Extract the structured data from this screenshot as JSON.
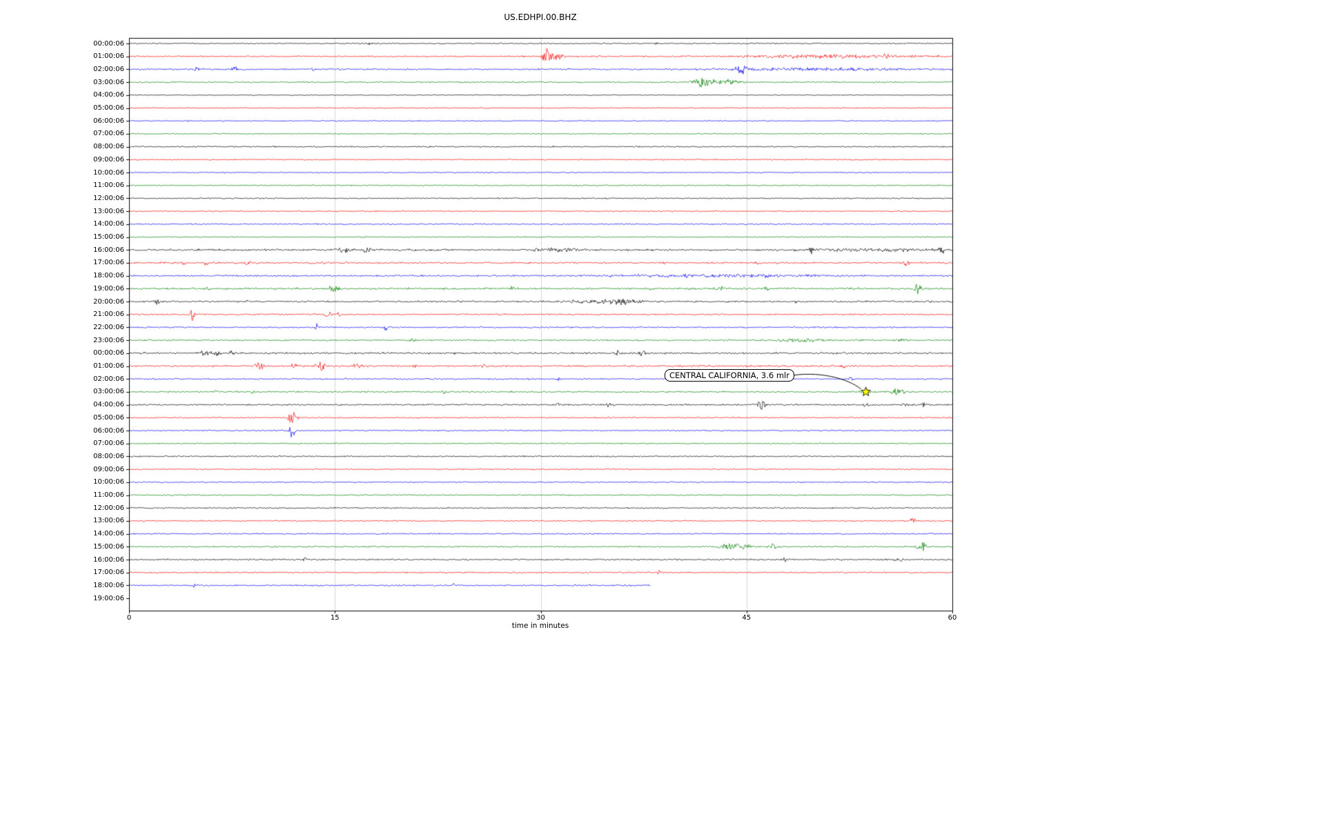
{
  "title": "US.EDHPI.00.BHZ",
  "xlabel": "time in minutes",
  "annotation": {
    "text": "CENTRAL CALIFORNIA, 3.6 mlr",
    "row": 27,
    "minute": 53.7
  },
  "colors": {
    "black": "#000000",
    "red": "#ff0000",
    "blue": "#0000ff",
    "green": "#008000",
    "grid": "#cccccc",
    "frame": "#000000",
    "star_fill": "#ffff00",
    "star_edge": "#000000"
  },
  "chart_data": {
    "type": "line",
    "title": "US.EDHPI.00.BHZ",
    "xlabel": "time in minutes",
    "xlim": [
      0,
      60
    ],
    "x_ticks": [
      0,
      15,
      30,
      45,
      60
    ],
    "grid": "vertical",
    "legend": "none",
    "description": "24h helicorder/dayplot seismogram, one 60-minute trace per row, colors cycle black/red/blue/green",
    "rows": [
      {
        "label": "00:00:06",
        "color": "#000000",
        "amp": 1.4,
        "end_min": 60,
        "events": [
          {
            "m": 17.5,
            "a": 4,
            "w": 0.1
          },
          {
            "m": 38.5,
            "a": 3,
            "w": 0.08
          }
        ]
      },
      {
        "label": "01:00:06",
        "color": "#ff0000",
        "amp": 1.5,
        "end_min": 60,
        "events": [
          {
            "m": 30.4,
            "a": 14,
            "w": 0.25
          },
          {
            "m": 31.2,
            "a": 6,
            "w": 0.3
          },
          {
            "m": 51,
            "a": 2.5,
            "w": 5
          },
          {
            "m": 48.3,
            "a": 4,
            "w": 0.1
          },
          {
            "m": 55.2,
            "a": 4,
            "w": 0.15
          }
        ]
      },
      {
        "label": "02:00:06",
        "color": "#0000ff",
        "amp": 1.6,
        "end_min": 60,
        "events": [
          {
            "m": 5,
            "a": 4,
            "w": 0.15
          },
          {
            "m": 7.7,
            "a": 5,
            "w": 0.12
          },
          {
            "m": 13.4,
            "a": 4,
            "w": 0.1
          },
          {
            "m": 44.6,
            "a": 8,
            "w": 0.3
          },
          {
            "m": 50,
            "a": 2,
            "w": 6
          }
        ]
      },
      {
        "label": "03:00:06",
        "color": "#008000",
        "amp": 1.5,
        "end_min": 60,
        "events": [
          {
            "m": 41.8,
            "a": 8,
            "w": 0.5
          },
          {
            "m": 43.6,
            "a": 5,
            "w": 0.6
          }
        ]
      },
      {
        "label": "04:00:06",
        "color": "#000000",
        "amp": 1.1,
        "end_min": 60,
        "events": []
      },
      {
        "label": "05:00:06",
        "color": "#ff0000",
        "amp": 1.1,
        "end_min": 60,
        "events": []
      },
      {
        "label": "06:00:06",
        "color": "#0000ff",
        "amp": 1.2,
        "end_min": 60,
        "events": []
      },
      {
        "label": "07:00:06",
        "color": "#008000",
        "amp": 1.2,
        "end_min": 60,
        "events": []
      },
      {
        "label": "08:00:06",
        "color": "#000000",
        "amp": 1.4,
        "end_min": 60,
        "events": []
      },
      {
        "label": "09:00:06",
        "color": "#ff0000",
        "amp": 1.2,
        "end_min": 60,
        "events": []
      },
      {
        "label": "10:00:06",
        "color": "#0000ff",
        "amp": 1.2,
        "end_min": 60,
        "events": []
      },
      {
        "label": "11:00:06",
        "color": "#008000",
        "amp": 1.2,
        "end_min": 60,
        "events": []
      },
      {
        "label": "12:00:06",
        "color": "#000000",
        "amp": 1.3,
        "end_min": 60,
        "events": []
      },
      {
        "label": "13:00:06",
        "color": "#ff0000",
        "amp": 1.2,
        "end_min": 60,
        "events": []
      },
      {
        "label": "14:00:06",
        "color": "#0000ff",
        "amp": 1.3,
        "end_min": 60,
        "events": []
      },
      {
        "label": "15:00:06",
        "color": "#008000",
        "amp": 1.2,
        "end_min": 60,
        "events": []
      },
      {
        "label": "16:00:06",
        "color": "#000000",
        "amp": 2.0,
        "end_min": 60,
        "events": [
          {
            "m": 15.6,
            "a": 5,
            "w": 0.5
          },
          {
            "m": 17.3,
            "a": 4,
            "w": 0.3
          },
          {
            "m": 29.6,
            "a": 3,
            "w": 0.1
          },
          {
            "m": 31.5,
            "a": 3,
            "w": 1.2
          },
          {
            "m": 49.7,
            "a": 4,
            "w": 0.15
          },
          {
            "m": 55,
            "a": 2,
            "w": 4
          },
          {
            "m": 59.3,
            "a": 4,
            "w": 0.2
          }
        ]
      },
      {
        "label": "17:00:06",
        "color": "#ff0000",
        "amp": 1.8,
        "end_min": 60,
        "events": [
          {
            "m": 4,
            "a": 4,
            "w": 0.1
          },
          {
            "m": 5.6,
            "a": 4,
            "w": 0.12
          },
          {
            "m": 8.6,
            "a": 4,
            "w": 0.15
          },
          {
            "m": 39,
            "a": 3,
            "w": 0.1
          },
          {
            "m": 45.8,
            "a": 4,
            "w": 0.12
          },
          {
            "m": 56.7,
            "a": 5,
            "w": 0.15
          }
        ]
      },
      {
        "label": "18:00:06",
        "color": "#0000ff",
        "amp": 1.8,
        "end_min": 60,
        "events": [
          {
            "m": 40.5,
            "a": 3,
            "w": 0.15
          },
          {
            "m": 43,
            "a": 2,
            "w": 6
          },
          {
            "m": 46.5,
            "a": 3,
            "w": 0.12
          }
        ]
      },
      {
        "label": "19:00:06",
        "color": "#008000",
        "amp": 1.9,
        "end_min": 60,
        "events": [
          {
            "m": 5.8,
            "a": 4,
            "w": 0.12
          },
          {
            "m": 15,
            "a": 5,
            "w": 0.4
          },
          {
            "m": 28,
            "a": 3,
            "w": 0.2
          },
          {
            "m": 38,
            "a": 3,
            "w": 0.12
          },
          {
            "m": 43,
            "a": 3,
            "w": 0.3
          },
          {
            "m": 46.5,
            "a": 3,
            "w": 0.2
          },
          {
            "m": 57.5,
            "a": 9,
            "w": 0.2
          }
        ]
      },
      {
        "label": "20:00:06",
        "color": "#000000",
        "amp": 1.8,
        "end_min": 60,
        "events": [
          {
            "m": 2,
            "a": 6,
            "w": 0.12
          },
          {
            "m": 8.6,
            "a": 3,
            "w": 0.1
          },
          {
            "m": 36,
            "a": 4,
            "w": 0.8
          },
          {
            "m": 34,
            "a": 2.5,
            "w": 2.5
          },
          {
            "m": 48.6,
            "a": 3,
            "w": 0.1
          }
        ]
      },
      {
        "label": "21:00:06",
        "color": "#ff0000",
        "amp": 1.6,
        "end_min": 60,
        "events": [
          {
            "m": 4.6,
            "a": 9,
            "w": 0.1
          },
          {
            "m": 14.5,
            "a": 7,
            "w": 0.15
          },
          {
            "m": 15.3,
            "a": 4,
            "w": 0.12
          }
        ]
      },
      {
        "label": "22:00:06",
        "color": "#0000ff",
        "amp": 1.5,
        "end_min": 60,
        "events": [
          {
            "m": 13.7,
            "a": 6,
            "w": 0.1
          },
          {
            "m": 18.7,
            "a": 4,
            "w": 0.12
          }
        ]
      },
      {
        "label": "23:00:06",
        "color": "#008000",
        "amp": 1.6,
        "end_min": 60,
        "events": [
          {
            "m": 20.7,
            "a": 3,
            "w": 0.15
          },
          {
            "m": 49,
            "a": 3,
            "w": 1.2
          },
          {
            "m": 56.2,
            "a": 3,
            "w": 0.3
          }
        ]
      },
      {
        "label": "00:00:06",
        "color": "#000000",
        "amp": 1.9,
        "end_min": 60,
        "events": [
          {
            "m": 5.6,
            "a": 4,
            "w": 0.3
          },
          {
            "m": 6.4,
            "a": 4,
            "w": 0.3
          },
          {
            "m": 7.4,
            "a": 3,
            "w": 0.2
          },
          {
            "m": 35.6,
            "a": 4,
            "w": 0.12
          },
          {
            "m": 37.4,
            "a": 6,
            "w": 0.15
          }
        ]
      },
      {
        "label": "01:00:06",
        "color": "#ff0000",
        "amp": 1.8,
        "end_min": 60,
        "events": [
          {
            "m": 9.5,
            "a": 5,
            "w": 0.3
          },
          {
            "m": 12,
            "a": 4,
            "w": 0.2
          },
          {
            "m": 13.9,
            "a": 9,
            "w": 0.25
          },
          {
            "m": 16.6,
            "a": 5,
            "w": 0.2
          },
          {
            "m": 20.9,
            "a": 3,
            "w": 0.15
          },
          {
            "m": 26,
            "a": 2.5,
            "w": 0.2
          },
          {
            "m": 52,
            "a": 3,
            "w": 0.2
          }
        ]
      },
      {
        "label": "02:00:06",
        "color": "#0000ff",
        "amp": 1.5,
        "end_min": 60,
        "events": [
          {
            "m": 31.3,
            "a": 3,
            "w": 0.12
          },
          {
            "m": 52.6,
            "a": 3,
            "w": 0.15
          }
        ]
      },
      {
        "label": "03:00:06",
        "color": "#008000",
        "amp": 1.6,
        "end_min": 60,
        "events": [
          {
            "m": 6.3,
            "a": 3,
            "w": 0.12
          },
          {
            "m": 9,
            "a": 3,
            "w": 0.12
          },
          {
            "m": 22.9,
            "a": 3,
            "w": 0.12
          },
          {
            "m": 53.7,
            "a": 4,
            "w": 0.3
          },
          {
            "m": 55.9,
            "a": 5,
            "w": 0.5
          }
        ]
      },
      {
        "label": "04:00:06",
        "color": "#000000",
        "amp": 1.7,
        "end_min": 60,
        "events": [
          {
            "m": 31.3,
            "a": 3,
            "w": 0.12
          },
          {
            "m": 34.9,
            "a": 4,
            "w": 0.15
          },
          {
            "m": 46.1,
            "a": 8,
            "w": 0.2
          },
          {
            "m": 53.7,
            "a": 4,
            "w": 0.15
          },
          {
            "m": 56.6,
            "a": 4,
            "w": 0.15
          },
          {
            "m": 57.9,
            "a": 4,
            "w": 0.12
          }
        ]
      },
      {
        "label": "05:00:06",
        "color": "#ff0000",
        "amp": 1.4,
        "end_min": 60,
        "events": [
          {
            "m": 11.9,
            "a": 10,
            "w": 0.25
          }
        ]
      },
      {
        "label": "06:00:06",
        "color": "#0000ff",
        "amp": 1.3,
        "end_min": 60,
        "events": [
          {
            "m": 11.9,
            "a": 14,
            "w": 0.12
          }
        ]
      },
      {
        "label": "07:00:06",
        "color": "#008000",
        "amp": 1.3,
        "end_min": 60,
        "events": []
      },
      {
        "label": "08:00:06",
        "color": "#000000",
        "amp": 1.4,
        "end_min": 60,
        "events": []
      },
      {
        "label": "09:00:06",
        "color": "#ff0000",
        "amp": 1.3,
        "end_min": 60,
        "events": []
      },
      {
        "label": "10:00:06",
        "color": "#0000ff",
        "amp": 1.3,
        "end_min": 60,
        "events": []
      },
      {
        "label": "11:00:06",
        "color": "#008000",
        "amp": 1.3,
        "end_min": 60,
        "events": []
      },
      {
        "label": "12:00:06",
        "color": "#000000",
        "amp": 1.4,
        "end_min": 60,
        "events": []
      },
      {
        "label": "13:00:06",
        "color": "#ff0000",
        "amp": 1.3,
        "end_min": 60,
        "events": [
          {
            "m": 57.1,
            "a": 4,
            "w": 0.2
          }
        ]
      },
      {
        "label": "14:00:06",
        "color": "#0000ff",
        "amp": 1.4,
        "end_min": 60,
        "events": []
      },
      {
        "label": "15:00:06",
        "color": "#008000",
        "amp": 1.5,
        "end_min": 60,
        "events": [
          {
            "m": 43.9,
            "a": 6,
            "w": 0.5
          },
          {
            "m": 45,
            "a": 4,
            "w": 0.3
          },
          {
            "m": 46.9,
            "a": 4,
            "w": 0.2
          },
          {
            "m": 57.8,
            "a": 6,
            "w": 0.25
          }
        ]
      },
      {
        "label": "16:00:06",
        "color": "#000000",
        "amp": 1.6,
        "end_min": 60,
        "events": [
          {
            "m": 12.8,
            "a": 4,
            "w": 0.1
          },
          {
            "m": 47.8,
            "a": 4,
            "w": 0.15
          },
          {
            "m": 53.9,
            "a": 3,
            "w": 0.12
          },
          {
            "m": 56.1,
            "a": 3,
            "w": 0.3
          }
        ]
      },
      {
        "label": "17:00:06",
        "color": "#ff0000",
        "amp": 1.5,
        "end_min": 60,
        "events": [
          {
            "m": 38.6,
            "a": 4,
            "w": 0.12
          }
        ]
      },
      {
        "label": "18:00:06",
        "color": "#0000ff",
        "amp": 1.5,
        "end_min": 38,
        "events": [
          {
            "m": 4.7,
            "a": 3,
            "w": 0.12
          },
          {
            "m": 23.7,
            "a": 3,
            "w": 0.12
          }
        ]
      },
      {
        "label": "19:00:06",
        "color": null,
        "amp": 0,
        "end_min": 0,
        "events": []
      }
    ]
  }
}
